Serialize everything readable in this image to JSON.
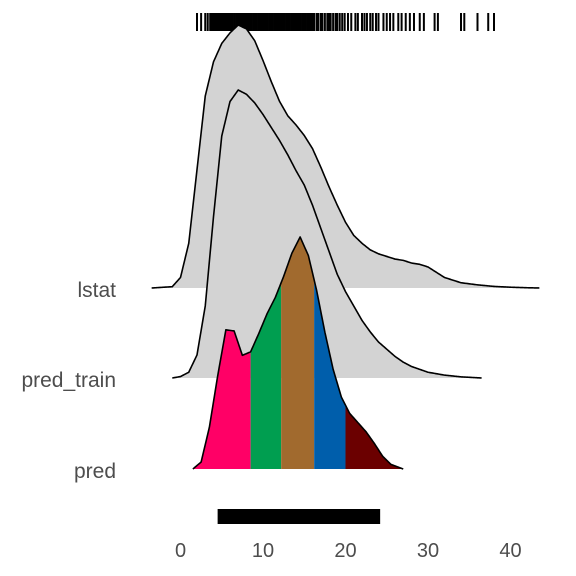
{
  "chart_data": {
    "type": "ridgeline",
    "title": "",
    "xlabel": "",
    "ylabel": "",
    "xlim": [
      -2,
      44
    ],
    "x_ticks": [
      0,
      10,
      20,
      30,
      40
    ],
    "x_tick_labels": [
      "0",
      "10",
      "20",
      "30",
      "40"
    ],
    "grid": false,
    "legend": "none",
    "rows": [
      {
        "label": "lstat",
        "fill": "#d3d3d3",
        "x": [
          -3.5,
          -1,
          0,
          1,
          2,
          3,
          4,
          5,
          6,
          7,
          8,
          9,
          10,
          11,
          12,
          13,
          14,
          15,
          16,
          17,
          18,
          19,
          20,
          21,
          22,
          23,
          24,
          25,
          26,
          27,
          28,
          29,
          30,
          31,
          32,
          33,
          34,
          36,
          38,
          40,
          42,
          43.5
        ],
        "density": [
          0,
          0.005,
          0.04,
          0.17,
          0.45,
          0.73,
          0.86,
          0.93,
          0.97,
          1.0,
          0.985,
          0.94,
          0.865,
          0.785,
          0.71,
          0.655,
          0.62,
          0.58,
          0.53,
          0.46,
          0.385,
          0.315,
          0.25,
          0.2,
          0.17,
          0.145,
          0.13,
          0.12,
          0.11,
          0.105,
          0.095,
          0.09,
          0.08,
          0.06,
          0.04,
          0.03,
          0.02,
          0.012,
          0.006,
          0.003,
          0.001,
          0
        ]
      },
      {
        "label": "pred_train",
        "fill": "#d3d3d3",
        "x": [
          -1,
          0,
          1,
          2,
          3,
          4,
          5,
          6,
          7,
          8,
          9,
          10,
          11,
          12,
          13,
          14,
          15,
          16,
          17,
          18,
          19,
          20,
          21,
          22,
          23,
          24,
          25,
          26,
          27,
          28,
          29,
          30,
          32,
          34,
          36.5
        ],
        "density": [
          0,
          0.005,
          0.02,
          0.08,
          0.25,
          0.56,
          0.84,
          0.96,
          1.0,
          0.985,
          0.955,
          0.915,
          0.87,
          0.825,
          0.775,
          0.72,
          0.67,
          0.6,
          0.52,
          0.44,
          0.36,
          0.3,
          0.25,
          0.2,
          0.16,
          0.125,
          0.1,
          0.075,
          0.055,
          0.04,
          0.03,
          0.02,
          0.01,
          0.004,
          0
        ]
      },
      {
        "label": "pred",
        "x": [
          1.5,
          2.5,
          3.5,
          4.5,
          5.5,
          6.5,
          7.5,
          8.5,
          9.5,
          10.5,
          11.5,
          12.5,
          13.5,
          14.5,
          15.5,
          16.5,
          17.5,
          18.5,
          19.5,
          20.5,
          21.5,
          22.5,
          23.5,
          24.5,
          25.5,
          27
        ],
        "density": [
          0,
          0.03,
          0.18,
          0.4,
          0.6,
          0.595,
          0.49,
          0.505,
          0.585,
          0.67,
          0.74,
          0.83,
          0.93,
          1.0,
          0.92,
          0.77,
          0.59,
          0.43,
          0.31,
          0.24,
          0.2,
          0.16,
          0.11,
          0.055,
          0.02,
          0
        ],
        "quantile_fills": [
          {
            "from": 1.5,
            "to": 8.5,
            "color": "#ff0066"
          },
          {
            "from": 8.5,
            "to": 12.2,
            "color": "#009e50"
          },
          {
            "from": 12.2,
            "to": 16.2,
            "color": "#a16a2e"
          },
          {
            "from": 16.2,
            "to": 20.0,
            "color": "#005eab"
          },
          {
            "from": 20.0,
            "to": 27,
            "color": "#6b0000"
          }
        ]
      }
    ],
    "rug": {
      "row": "lstat",
      "ticks": [
        2,
        2.5,
        3,
        3.3,
        3.6,
        3.8,
        4,
        4.2,
        4.4,
        4.5,
        4.7,
        4.8,
        5,
        5.2,
        5.3,
        5.5,
        5.6,
        5.8,
        6,
        6.1,
        6.3,
        6.5,
        6.6,
        6.8,
        7,
        7.1,
        7.3,
        7.5,
        7.6,
        7.8,
        8,
        8.2,
        8.4,
        8.6,
        8.8,
        9,
        9.2,
        9.4,
        9.6,
        9.8,
        10,
        10.2,
        10.4,
        10.6,
        10.8,
        11,
        11.2,
        11.4,
        11.6,
        11.8,
        12,
        12.2,
        12.4,
        12.6,
        12.8,
        13,
        13.2,
        13.4,
        13.6,
        13.8,
        14,
        14.2,
        14.4,
        14.6,
        14.8,
        15,
        15.2,
        15.4,
        15.6,
        15.8,
        16,
        16.2,
        16.5,
        16.7,
        17,
        17.2,
        17.5,
        17.8,
        18,
        18.2,
        18.5,
        18.8,
        19,
        19.3,
        19.6,
        19.9,
        20.3,
        20.7,
        21.2,
        21.5,
        22,
        22.3,
        22.6,
        23,
        23.3,
        23.7,
        24,
        24.6,
        25,
        25.4,
        25.8,
        26.4,
        26.8,
        27.3,
        27.8,
        28.3,
        29,
        29.5,
        30.8,
        31.2,
        34,
        34.4,
        36,
        37.3,
        38
      ]
    },
    "range_bar": {
      "row": "pred",
      "from": 4.5,
      "to": 24.2
    }
  }
}
